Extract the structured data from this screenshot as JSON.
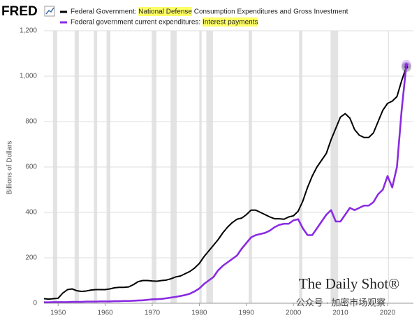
{
  "chart_data": {
    "type": "line",
    "logo": "FRED",
    "ylabel": "Billions of Dollars",
    "watermark": [
      "The Daily Shot®",
      "公众号 · 加密市场观察"
    ],
    "x": [
      1947,
      1948,
      1949,
      1950,
      1951,
      1952,
      1953,
      1954,
      1955,
      1956,
      1957,
      1958,
      1959,
      1960,
      1961,
      1962,
      1963,
      1964,
      1965,
      1966,
      1967,
      1968,
      1969,
      1970,
      1971,
      1972,
      1973,
      1974,
      1975,
      1976,
      1977,
      1978,
      1979,
      1980,
      1981,
      1982,
      1983,
      1984,
      1985,
      1986,
      1987,
      1988,
      1989,
      1990,
      1991,
      1992,
      1993,
      1994,
      1995,
      1996,
      1997,
      1998,
      1999,
      2000,
      2001,
      2002,
      2003,
      2004,
      2005,
      2006,
      2007,
      2008,
      2009,
      2010,
      2011,
      2012,
      2013,
      2014,
      2015,
      2016,
      2017,
      2018,
      2019,
      2020,
      2021,
      2022,
      2023,
      2024
    ],
    "series": [
      {
        "name": "Federal Government: National Defense Consumption Expenditures and Gross Investment",
        "highlight": "National Defense",
        "color": "#000000",
        "values": [
          20,
          18,
          20,
          22,
          45,
          60,
          63,
          55,
          52,
          54,
          58,
          60,
          60,
          60,
          63,
          68,
          70,
          70,
          72,
          82,
          95,
          100,
          100,
          98,
          97,
          100,
          102,
          108,
          116,
          120,
          130,
          140,
          155,
          175,
          205,
          230,
          255,
          280,
          310,
          335,
          355,
          370,
          375,
          390,
          410,
          410,
          400,
          390,
          380,
          372,
          372,
          370,
          380,
          385,
          405,
          450,
          510,
          560,
          600,
          630,
          660,
          720,
          770,
          820,
          835,
          815,
          765,
          740,
          730,
          730,
          750,
          800,
          850,
          880,
          890,
          910,
          980,
          1040
        ]
      },
      {
        "name": "Federal government current expenditures: Interest payments",
        "highlight": "Interest payments",
        "color": "#8a2be2",
        "values": [
          4,
          4,
          5,
          5,
          5,
          5,
          6,
          6,
          6,
          7,
          7,
          7,
          8,
          8,
          8,
          9,
          9,
          10,
          10,
          11,
          12,
          13,
          15,
          17,
          18,
          19,
          22,
          25,
          28,
          32,
          36,
          42,
          52,
          65,
          85,
          100,
          115,
          145,
          165,
          180,
          195,
          210,
          240,
          265,
          290,
          300,
          305,
          310,
          320,
          335,
          345,
          350,
          350,
          365,
          370,
          330,
          300,
          300,
          330,
          360,
          390,
          410,
          360,
          360,
          390,
          420,
          410,
          420,
          430,
          430,
          445,
          480,
          500,
          560,
          510,
          600,
          850,
          1050
        ]
      }
    ],
    "recessions": [
      [
        1948.9,
        1949.8
      ],
      [
        1953.5,
        1954.4
      ],
      [
        1957.6,
        1958.3
      ],
      [
        1960.3,
        1961.1
      ],
      [
        1969.9,
        1970.9
      ],
      [
        1973.9,
        1975.2
      ],
      [
        1980.0,
        1980.5
      ],
      [
        1981.5,
        1982.9
      ],
      [
        1990.5,
        1991.2
      ],
      [
        2001.2,
        2001.9
      ],
      [
        2007.9,
        2009.5
      ],
      [
        2020.1,
        2020.3
      ]
    ],
    "xlim": [
      1947,
      2025.5
    ],
    "ylim": [
      0,
      1200
    ],
    "xticks": [
      1950,
      1960,
      1970,
      1980,
      1990,
      2000,
      2010,
      2020
    ],
    "yticks": [
      0,
      200,
      400,
      600,
      800,
      {
        "value": 1000,
        "label": "1,000"
      },
      {
        "value": 1200,
        "label": "1,200"
      }
    ],
    "grid": true
  }
}
